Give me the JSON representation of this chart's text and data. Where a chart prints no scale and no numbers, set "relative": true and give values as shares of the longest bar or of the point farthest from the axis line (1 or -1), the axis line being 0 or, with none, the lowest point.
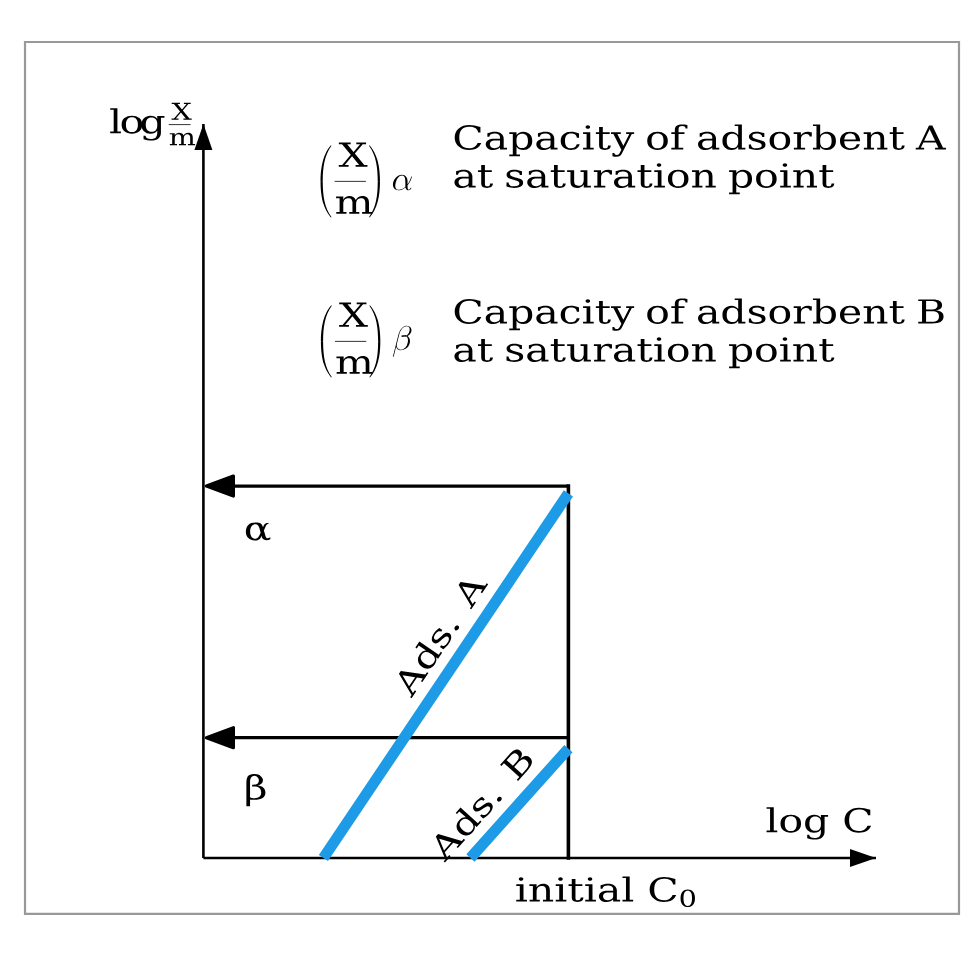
{
  "chart_data": {
    "type": "line",
    "relative": true,
    "annotations": [
      "\\log\\frac{\\mathrm{X}}{\\mathrm{m}}",
      "\\left(\\frac{\\mathrm{X}}{\\mathrm{m}}\\right)\\alpha",
      "Capacity of adsorbent A at saturation point",
      "\\left(\\frac{\\mathrm{X}}{\\mathrm{m}}\\right)\\beta",
      "Capacity of adsorbent B at saturation point",
      "log C",
      "initial C$_{0}$"
    ],
    "categories": [
      null,
      null,
      null,
      null,
      null,
      null
    ],
    "series": [
      {
        "name": "Ads. A",
        "color": "#1e9be6",
        "values": [
          0,
          0.2,
          0.4,
          0.6,
          0.8,
          1
        ]
      },
      {
        "name": "Ads. B",
        "color": "#1e9be6",
        "values": [
          null,
          null,
          null,
          0,
          0.15,
          0.3
        ]
      }
    ],
    "ref_lines": [
      {
        "axis": "y",
        "value": 1.02,
        "label": "α"
      },
      {
        "axis": "y",
        "value": 0.33,
        "label": "β"
      }
    ]
  }
}
